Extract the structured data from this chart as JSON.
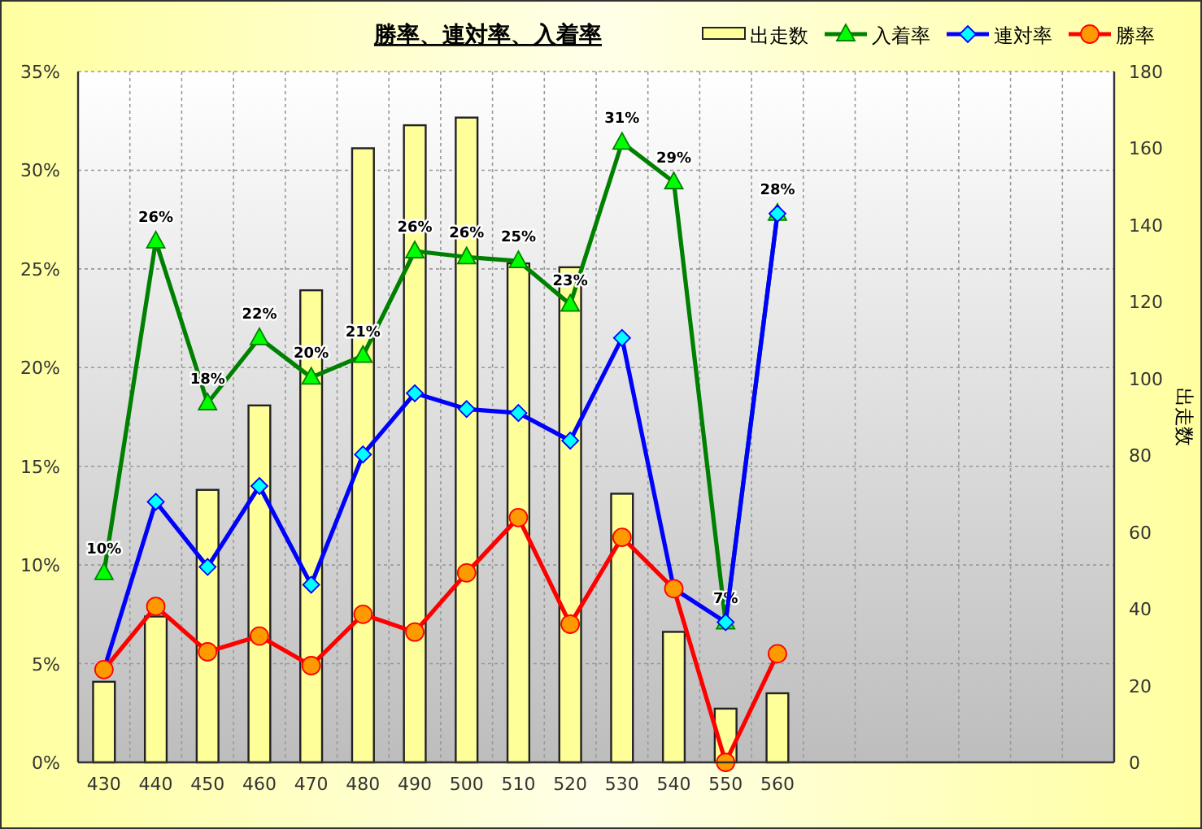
{
  "chart_data": {
    "type": "line",
    "title": "勝率、連対率、入着率",
    "y2label": "出走数",
    "categories": [
      "430",
      "440",
      "450",
      "460",
      "470",
      "480",
      "490",
      "500",
      "510",
      "520",
      "530",
      "540",
      "550",
      "560",
      null,
      null,
      null,
      null,
      null,
      null
    ],
    "series": [
      {
        "name": "出走数",
        "type": "bar",
        "axis": "y2",
        "color": "#ffff99",
        "values": [
          21,
          38,
          71,
          93,
          123,
          160,
          166,
          168,
          130,
          129,
          70,
          34,
          14,
          18,
          null,
          null,
          null,
          null,
          null,
          null
        ]
      },
      {
        "name": "入着率",
        "color": "#008000",
        "marker": "triangle",
        "values": [
          9.6,
          26.4,
          18.2,
          21.5,
          19.5,
          20.6,
          25.9,
          25.6,
          25.4,
          23.2,
          31.4,
          29.4,
          7.1,
          27.8,
          null,
          null,
          null,
          null,
          null,
          null
        ],
        "value_labels": [
          "10%",
          "26%",
          "18%",
          "22%",
          "20%",
          "21%",
          "26%",
          "26%",
          "25%",
          "23%",
          "31%",
          "29%",
          "7%",
          "28%",
          null,
          null,
          null,
          null,
          null,
          null
        ]
      },
      {
        "name": "連対率",
        "color": "#0000ff",
        "marker": "diamond",
        "values": [
          4.7,
          13.2,
          9.9,
          14.0,
          9.0,
          15.6,
          18.7,
          17.9,
          17.7,
          16.3,
          21.5,
          8.8,
          7.1,
          27.8,
          null,
          null,
          null,
          null,
          null,
          null
        ]
      },
      {
        "name": "勝率",
        "color": "#ff0000",
        "marker": "circle",
        "values": [
          4.7,
          7.9,
          5.6,
          6.4,
          4.9,
          7.5,
          6.6,
          9.6,
          12.4,
          7.0,
          11.4,
          8.8,
          0,
          5.5,
          null,
          null,
          null,
          null,
          null,
          null
        ]
      }
    ],
    "ylim": [
      0,
      35
    ],
    "yticks": [
      {
        "value": 0,
        "label": "0%"
      },
      {
        "value": 5,
        "label": "5%"
      },
      {
        "value": 10,
        "label": "10%"
      },
      {
        "value": 15,
        "label": "15%"
      },
      {
        "value": 20,
        "label": "20%"
      },
      {
        "value": 25,
        "label": "25%"
      },
      {
        "value": 30,
        "label": "30%"
      },
      {
        "value": 35,
        "label": "35%"
      }
    ],
    "y2lim": [
      0,
      180
    ],
    "y2ticks": [
      0,
      20,
      40,
      60,
      80,
      100,
      120,
      140,
      160,
      180
    ],
    "grid": true,
    "legend": "top right"
  }
}
